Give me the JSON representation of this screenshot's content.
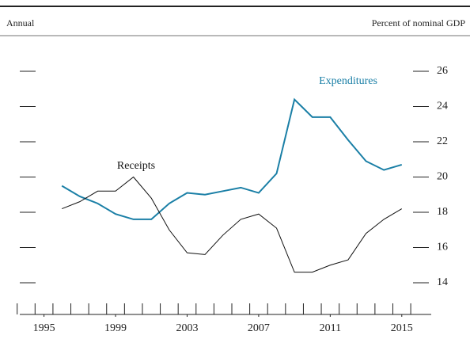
{
  "chart_data": {
    "type": "line",
    "header_left": "Annual",
    "header_right": "Percent of nominal GDP",
    "x": [
      1996,
      1997,
      1998,
      1999,
      2000,
      2001,
      2002,
      2003,
      2004,
      2005,
      2006,
      2007,
      2008,
      2009,
      2010,
      2011,
      2012,
      2013,
      2014,
      2015
    ],
    "series": [
      {
        "name": "Expenditures",
        "color": "#1a7fa6",
        "values": [
          19.5,
          18.9,
          18.5,
          17.9,
          17.6,
          17.6,
          18.5,
          19.1,
          19.0,
          19.2,
          19.4,
          19.1,
          20.2,
          24.4,
          23.4,
          23.4,
          22.1,
          20.9,
          20.4,
          20.7
        ]
      },
      {
        "name": "Receipts",
        "color": "#111111",
        "values": [
          18.2,
          18.6,
          19.2,
          19.2,
          20.0,
          18.8,
          17.0,
          15.7,
          15.6,
          16.7,
          17.6,
          17.9,
          17.1,
          14.6,
          14.6,
          15.0,
          15.3,
          16.8,
          17.6,
          18.2
        ]
      }
    ],
    "xlim": [
      1994,
      2017
    ],
    "xticks": [
      1995,
      1999,
      2003,
      2007,
      2011,
      2015
    ],
    "minor_xticks": [
      1994,
      1995,
      1996,
      1997,
      1998,
      1999,
      2000,
      2001,
      2002,
      2003,
      2004,
      2005,
      2006,
      2007,
      2008,
      2009,
      2010,
      2011,
      2012,
      2013,
      2014,
      2015,
      2016
    ],
    "ylim": [
      14,
      26
    ],
    "yticks": [
      14,
      16,
      18,
      20,
      22,
      24,
      26
    ]
  }
}
